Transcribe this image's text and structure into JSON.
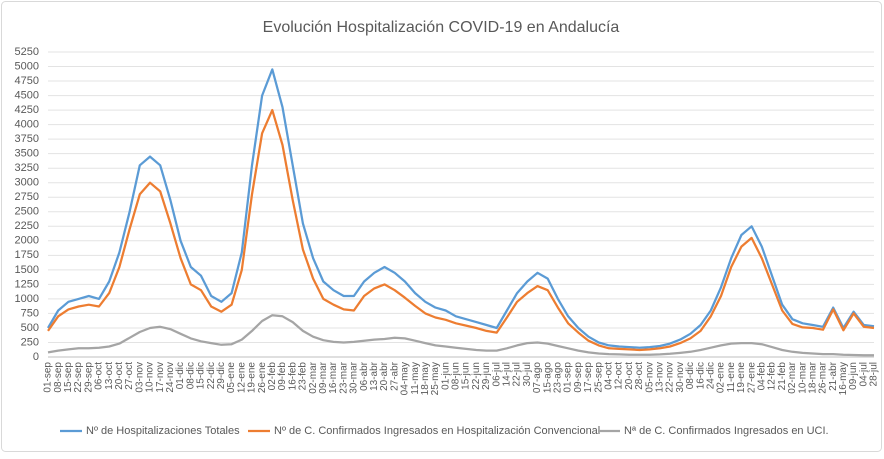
{
  "chart_data": {
    "type": "line",
    "title": "Evolución Hospitalización COVID-19 en Andalucía",
    "categories": [
      "01-sep",
      "08-sep",
      "15-sep",
      "22-sep",
      "29-sep",
      "06-oct",
      "13-oct",
      "20-oct",
      "27-oct",
      "03-nov",
      "10-nov",
      "17-nov",
      "24-nov",
      "01-dic",
      "08-dic",
      "15-dic",
      "22-dic",
      "29-dic",
      "05-ene",
      "12-ene",
      "19-ene",
      "26-ene",
      "02-feb",
      "09-feb",
      "16-feb",
      "23-feb",
      "02-mar",
      "09-mar",
      "16-mar",
      "23-mar",
      "30-mar",
      "06-abr",
      "13-abr",
      "20-abr",
      "27-abr",
      "04-may",
      "11-may",
      "18-may",
      "25-may",
      "01-jun",
      "08-jun",
      "15-jun",
      "22-jun",
      "29-jun",
      "06-jul",
      "14-jul",
      "22-jul",
      "30-jul",
      "07-ago",
      "15-ago",
      "23-ago",
      "01-sep",
      "09-sep",
      "17-sep",
      "25-sep",
      "04-oct",
      "12-oct",
      "20-oct",
      "28-oct",
      "05-nov",
      "13-nov",
      "22-nov",
      "30-nov",
      "08-dic",
      "16-dic",
      "24-dic",
      "02-ene",
      "11-ene",
      "19-ene",
      "27-ene",
      "04-feb",
      "12-feb",
      "21-feb",
      "02-mar",
      "10-mar",
      "18-mar",
      "26-mar",
      "21-abr",
      "16-may",
      "09-jun",
      "04-jul",
      "28-jul"
    ],
    "series": [
      {
        "name": "Nº de Hospitalizaciones Totales",
        "color": "#5b9bd5",
        "values": [
          500,
          800,
          950,
          1000,
          1050,
          1000,
          1300,
          1800,
          2500,
          3300,
          3450,
          3300,
          2700,
          2000,
          1550,
          1400,
          1050,
          950,
          1100,
          1800,
          3300,
          4500,
          4950,
          4300,
          3300,
          2300,
          1700,
          1300,
          1150,
          1050,
          1050,
          1300,
          1450,
          1550,
          1450,
          1300,
          1100,
          950,
          850,
          800,
          700,
          650,
          600,
          550,
          500,
          800,
          1100,
          1300,
          1450,
          1350,
          1000,
          700,
          500,
          350,
          250,
          200,
          180,
          170,
          160,
          170,
          190,
          230,
          300,
          400,
          550,
          800,
          1200,
          1700,
          2100,
          2250,
          1900,
          1400,
          900,
          650,
          580,
          550,
          520,
          850,
          500,
          780,
          550,
          530
        ]
      },
      {
        "name": "Nº de C. Confirmados Ingresados en Hospitalización Convencional",
        "color": "#ed7d31",
        "values": [
          450,
          700,
          820,
          870,
          900,
          870,
          1100,
          1550,
          2200,
          2800,
          3000,
          2850,
          2300,
          1700,
          1250,
          1150,
          870,
          780,
          900,
          1500,
          2800,
          3850,
          4250,
          3650,
          2700,
          1850,
          1350,
          1000,
          900,
          820,
          800,
          1050,
          1180,
          1250,
          1150,
          1020,
          880,
          750,
          680,
          640,
          580,
          540,
          500,
          450,
          420,
          680,
          950,
          1100,
          1220,
          1150,
          850,
          580,
          420,
          280,
          200,
          150,
          140,
          130,
          120,
          130,
          150,
          180,
          240,
          320,
          450,
          700,
          1050,
          1550,
          1900,
          2050,
          1700,
          1250,
          800,
          570,
          510,
          500,
          470,
          820,
          460,
          750,
          520,
          500
        ]
      },
      {
        "name": "Nª de C. Confirmados Ingresados en UCI.",
        "color": "#a5a5a5",
        "values": [
          80,
          110,
          130,
          150,
          150,
          160,
          180,
          230,
          330,
          430,
          500,
          520,
          480,
          400,
          320,
          270,
          240,
          210,
          220,
          300,
          450,
          620,
          720,
          700,
          600,
          450,
          350,
          290,
          260,
          250,
          260,
          280,
          300,
          310,
          330,
          320,
          280,
          240,
          200,
          180,
          160,
          140,
          120,
          110,
          110,
          150,
          200,
          240,
          250,
          230,
          190,
          150,
          110,
          80,
          60,
          50,
          45,
          40,
          40,
          40,
          45,
          55,
          70,
          90,
          120,
          160,
          200,
          230,
          240,
          240,
          220,
          170,
          120,
          90,
          70,
          60,
          50,
          50,
          40,
          35,
          30,
          30
        ]
      }
    ],
    "ylim": [
      0,
      5250
    ],
    "yticks": [
      0,
      250,
      500,
      750,
      1000,
      1250,
      1500,
      1750,
      2000,
      2250,
      2500,
      2750,
      3000,
      3250,
      3500,
      3750,
      4000,
      4250,
      4500,
      4750,
      5000,
      5250
    ],
    "grid": true,
    "legend": "bottom"
  }
}
